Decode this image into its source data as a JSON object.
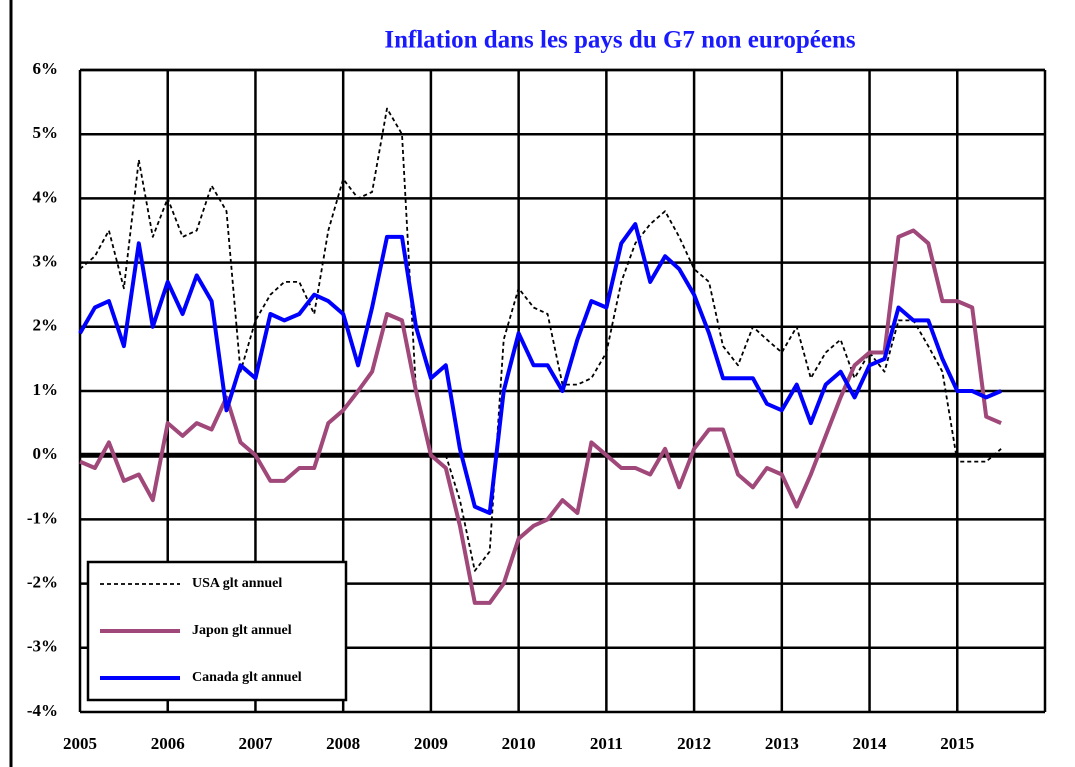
{
  "chart_data": {
    "type": "line",
    "title": "Inflation dans les pays du  G7 non  européens",
    "x": [
      2005,
      2005.17,
      2005.33,
      2005.5,
      2005.67,
      2005.83,
      2006,
      2006.17,
      2006.33,
      2006.5,
      2006.67,
      2006.83,
      2007,
      2007.17,
      2007.33,
      2007.5,
      2007.67,
      2007.83,
      2008,
      2008.17,
      2008.33,
      2008.5,
      2008.67,
      2008.83,
      2009,
      2009.17,
      2009.33,
      2009.5,
      2009.67,
      2009.83,
      2010,
      2010.17,
      2010.33,
      2010.5,
      2010.67,
      2010.83,
      2011,
      2011.17,
      2011.33,
      2011.5,
      2011.67,
      2011.83,
      2012,
      2012.17,
      2012.33,
      2012.5,
      2012.67,
      2012.83,
      2013,
      2013.17,
      2013.33,
      2013.5,
      2013.67,
      2013.83,
      2014,
      2014.17,
      2014.33,
      2014.5,
      2014.67,
      2014.83,
      2015,
      2015.17,
      2015.33,
      2015.5
    ],
    "series": [
      {
        "name": "USA glt annuel",
        "color": "#000000",
        "line_style": "dashed",
        "values": [
          2.9,
          3.1,
          3.5,
          2.6,
          4.6,
          3.4,
          4.0,
          3.4,
          3.5,
          4.2,
          3.8,
          1.3,
          2.1,
          2.5,
          2.7,
          2.7,
          2.2,
          3.5,
          4.3,
          4.0,
          4.1,
          5.4,
          5.0,
          1.0,
          0.0,
          0.0,
          -0.7,
          -1.8,
          -1.5,
          1.8,
          2.6,
          2.3,
          2.2,
          1.1,
          1.1,
          1.2,
          1.6,
          2.7,
          3.3,
          3.6,
          3.8,
          3.4,
          2.9,
          2.7,
          1.7,
          1.4,
          2.0,
          1.8,
          1.6,
          2.0,
          1.2,
          1.6,
          1.8,
          1.2,
          1.6,
          1.3,
          2.1,
          2.1,
          1.7,
          1.3,
          -0.1,
          -0.1,
          -0.1,
          0.1
        ]
      },
      {
        "name": "Japon glt annuel",
        "color": "#a0487a",
        "line_style": "solid",
        "values": [
          -0.1,
          -0.2,
          0.2,
          -0.4,
          -0.3,
          -0.7,
          0.5,
          0.3,
          0.5,
          0.4,
          0.9,
          0.2,
          0.0,
          -0.4,
          -0.4,
          -0.2,
          -0.2,
          0.5,
          0.7,
          1.0,
          1.3,
          2.2,
          2.1,
          1.0,
          0.0,
          -0.2,
          -1.1,
          -2.3,
          -2.3,
          -2.0,
          -1.3,
          -1.1,
          -1.0,
          -0.7,
          -0.9,
          0.2,
          0.0,
          -0.2,
          -0.2,
          -0.3,
          0.1,
          -0.5,
          0.1,
          0.4,
          0.4,
          -0.3,
          -0.5,
          -0.2,
          -0.3,
          -0.8,
          -0.3,
          0.3,
          0.9,
          1.4,
          1.6,
          1.6,
          3.4,
          3.5,
          3.3,
          2.4,
          2.4,
          2.3,
          0.6,
          0.5
        ]
      },
      {
        "name": "Canada glt annuel",
        "color": "#0000ff",
        "line_style": "solid",
        "values": [
          1.9,
          2.3,
          2.4,
          1.7,
          3.3,
          2.0,
          2.7,
          2.2,
          2.8,
          2.4,
          0.7,
          1.4,
          1.2,
          2.2,
          2.1,
          2.2,
          2.5,
          2.4,
          2.2,
          1.4,
          2.3,
          3.4,
          3.4,
          2.0,
          1.2,
          1.4,
          0.1,
          -0.8,
          -0.9,
          1.0,
          1.9,
          1.4,
          1.4,
          1.0,
          1.8,
          2.4,
          2.3,
          3.3,
          3.6,
          2.7,
          3.1,
          2.9,
          2.5,
          1.9,
          1.2,
          1.2,
          1.2,
          0.8,
          0.7,
          1.1,
          0.5,
          1.1,
          1.3,
          0.9,
          1.4,
          1.5,
          2.3,
          2.1,
          2.1,
          1.5,
          1.0,
          1.0,
          0.9,
          1.0
        ]
      }
    ],
    "xlim": [
      2005,
      2016
    ],
    "xticks": [
      2005,
      2006,
      2007,
      2008,
      2009,
      2010,
      2011,
      2012,
      2013,
      2014,
      2015
    ],
    "ylim": [
      -4,
      6
    ],
    "yticks": [
      {
        "value": -4,
        "label": "-4%"
      },
      {
        "value": -3,
        "label": "-3%"
      },
      {
        "value": -2,
        "label": "-2%"
      },
      {
        "value": -1,
        "label": "-1%"
      },
      {
        "value": 0,
        "label": "0%"
      },
      {
        "value": 1,
        "label": "1%"
      },
      {
        "value": 2,
        "label": "2%"
      },
      {
        "value": 3,
        "label": "3%"
      },
      {
        "value": 4,
        "label": "4%"
      },
      {
        "value": 5,
        "label": "5%"
      },
      {
        "value": 6,
        "label": "6%"
      }
    ],
    "grid": true,
    "legend": "lower left"
  }
}
